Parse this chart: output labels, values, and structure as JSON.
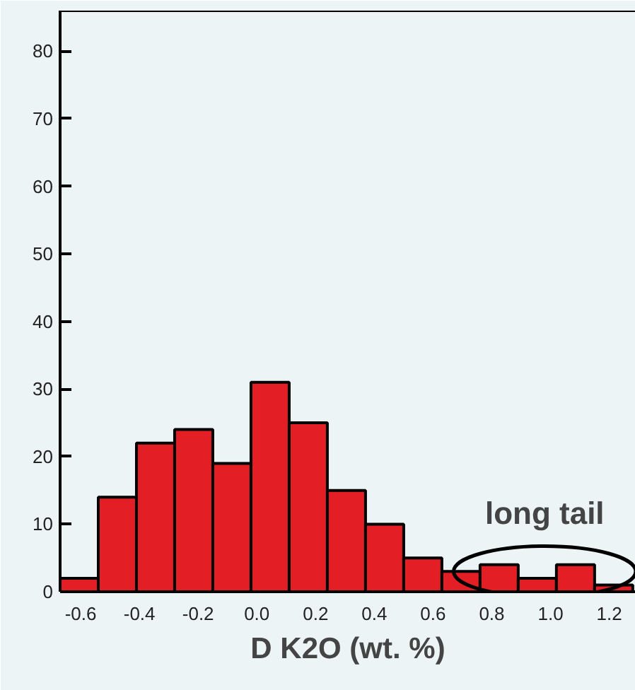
{
  "chart_data": {
    "type": "histogram",
    "xlabel": "D K2O (wt. %)",
    "color": "#e31e24",
    "bins": [
      -0.67,
      -0.54,
      -0.41,
      -0.28,
      -0.15,
      -0.02,
      0.11,
      0.24,
      0.37,
      0.5,
      0.63,
      0.76,
      0.89,
      1.02,
      1.15,
      1.28
    ],
    "values": [
      2,
      14,
      22,
      24,
      19,
      31,
      25,
      15,
      10,
      5,
      3,
      4,
      2,
      4,
      1
    ],
    "xlim": [
      -0.67,
      1.29
    ],
    "ylim": [
      0,
      86
    ],
    "xticks": [
      {
        "value": -0.6,
        "label": "-0.6"
      },
      {
        "value": -0.4,
        "label": "-0.4"
      },
      {
        "value": -0.2,
        "label": "-0.2"
      },
      {
        "value": 0.0,
        "label": "0.0"
      },
      {
        "value": 0.2,
        "label": "0.2"
      },
      {
        "value": 0.4,
        "label": "0.4"
      },
      {
        "value": 0.6,
        "label": "0.6"
      },
      {
        "value": 0.8,
        "label": "0.8"
      },
      {
        "value": 1.0,
        "label": "1.0"
      },
      {
        "value": 1.2,
        "label": "1.2"
      }
    ],
    "yticks": [
      0,
      10,
      20,
      30,
      40,
      50,
      60,
      70,
      80
    ],
    "grid": false,
    "annotations": [
      {
        "text": "long tail",
        "x": 0.98,
        "y": 3
      }
    ]
  }
}
